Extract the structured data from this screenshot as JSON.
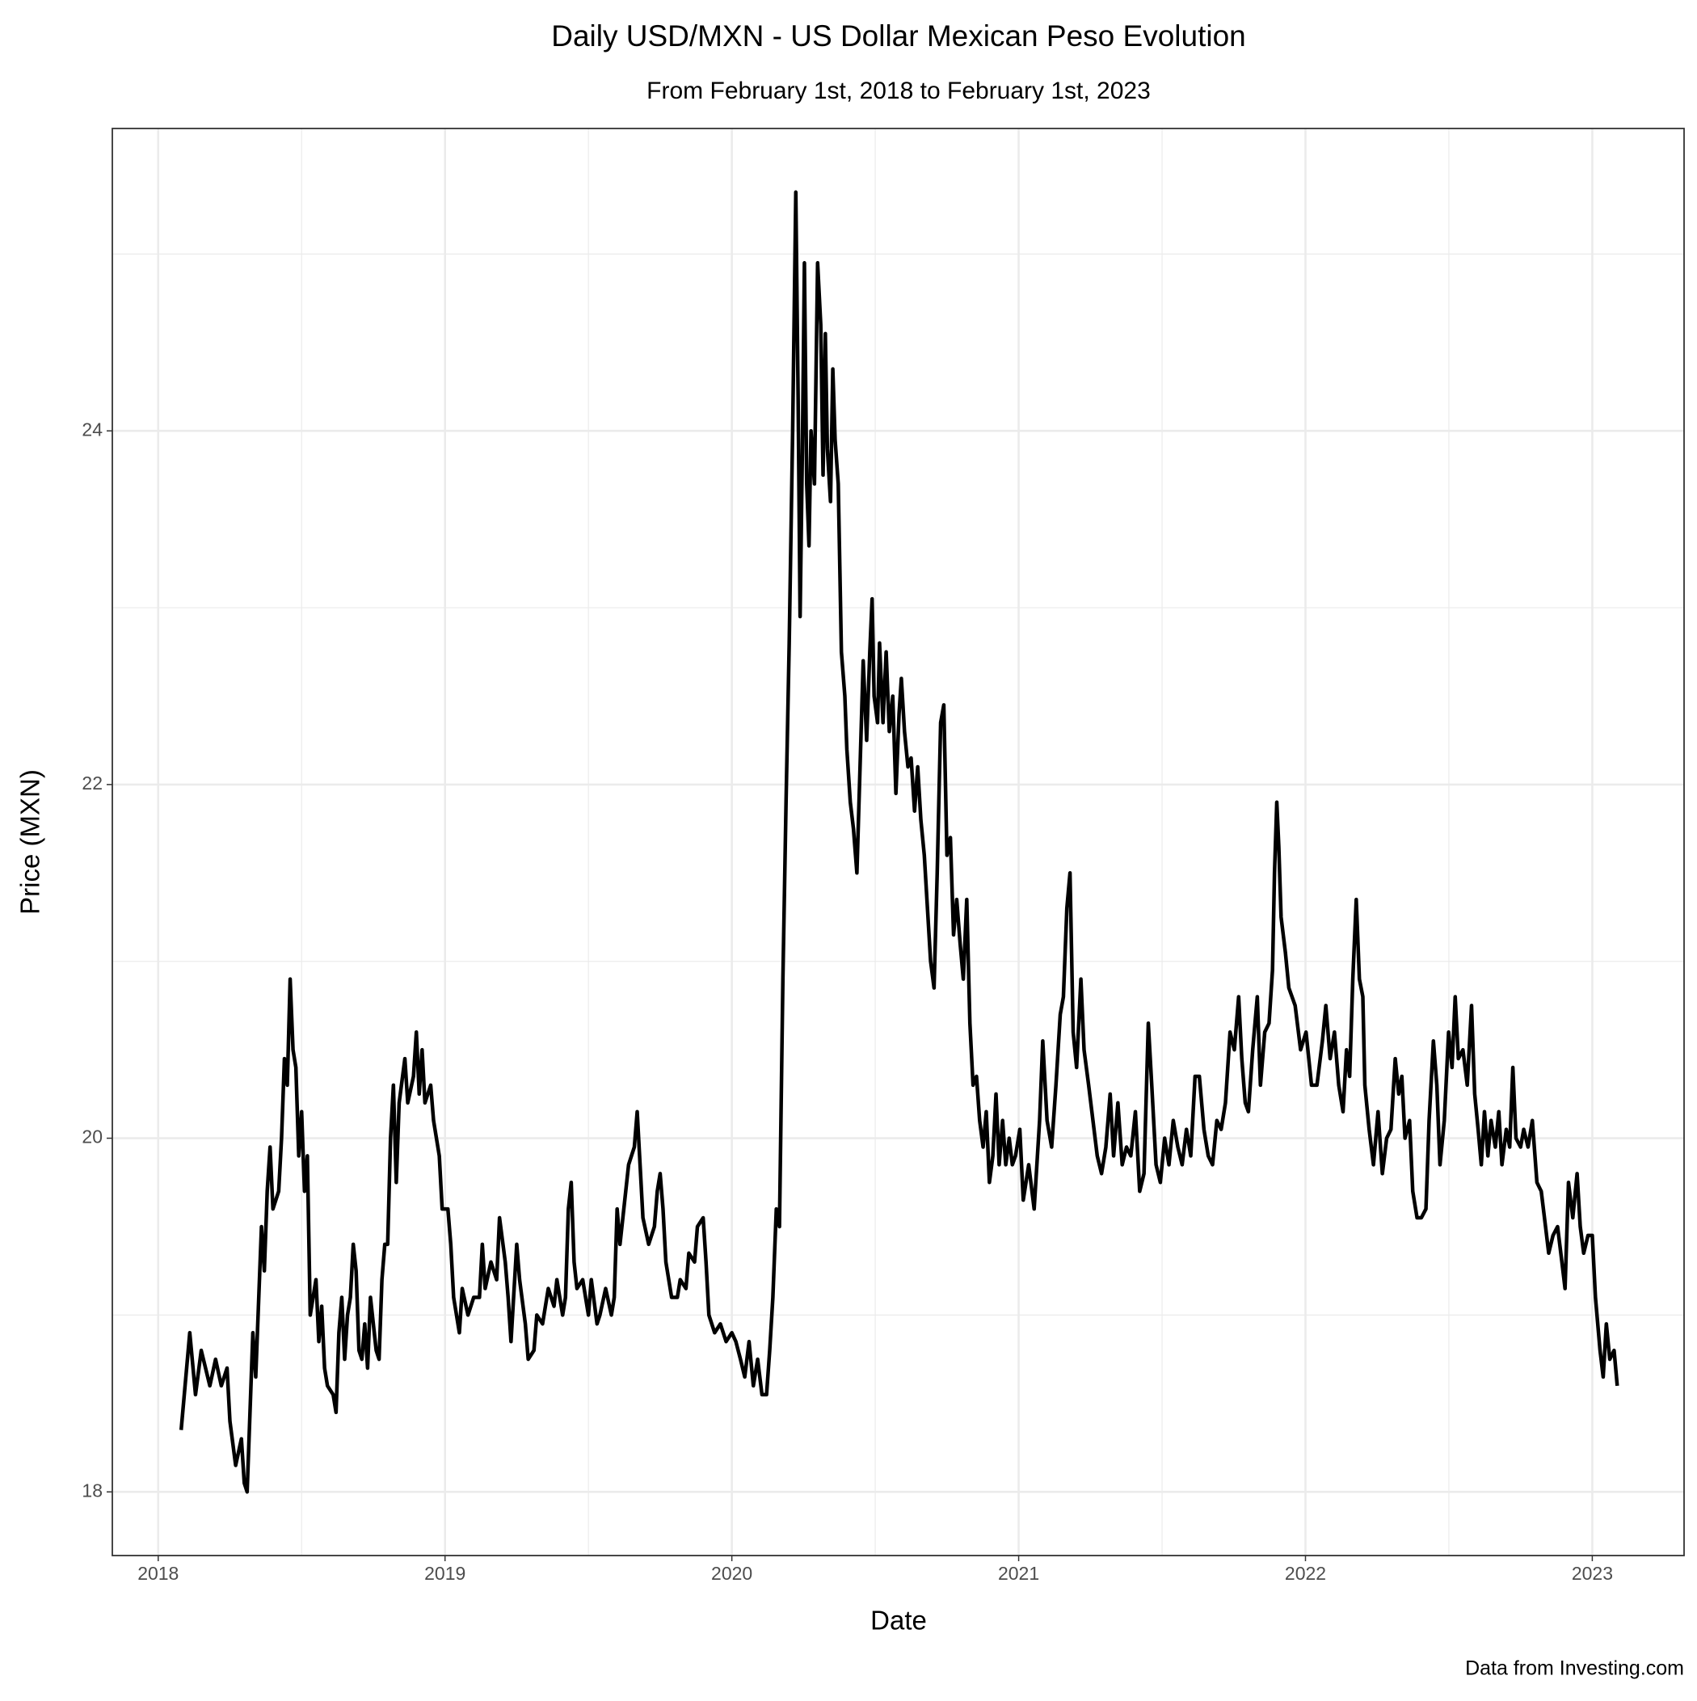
{
  "chart_data": {
    "type": "line",
    "title": "Daily USD/MXN - US Dollar Mexican Peso Evolution",
    "subtitle": "From February 1st, 2018 to February 1st, 2023",
    "x_label": "Date",
    "y_label": "Price (MXN)",
    "caption": "Data from Investing.com",
    "color": "#000000",
    "grid": true,
    "xlim": [
      2017.84,
      2023.32
    ],
    "xticks": [
      2018,
      2019,
      2020,
      2021,
      2022,
      2023
    ],
    "ylim": [
      17.64,
      25.71
    ],
    "yticks": [
      18,
      20,
      22,
      24
    ],
    "x": [
      2018.08,
      2018.11,
      2018.13,
      2018.15,
      2018.18,
      2018.2,
      2018.22,
      2018.24,
      2018.25,
      2018.27,
      2018.29,
      2018.3,
      2018.31,
      2018.33,
      2018.34,
      2018.36,
      2018.37,
      2018.38,
      2018.39,
      2018.4,
      2018.42,
      2018.43,
      2018.44,
      2018.45,
      2018.46,
      2018.47,
      2018.48,
      2018.49,
      2018.5,
      2018.51,
      2018.52,
      2018.53,
      2018.55,
      2018.56,
      2018.57,
      2018.58,
      2018.59,
      2018.61,
      2018.62,
      2018.63,
      2018.64,
      2018.65,
      2018.66,
      2018.67,
      2018.68,
      2018.69,
      2018.7,
      2018.71,
      2018.72,
      2018.73,
      2018.74,
      2018.76,
      2018.77,
      2018.78,
      2018.79,
      2018.8,
      2018.81,
      2018.82,
      2018.83,
      2018.84,
      2018.86,
      2018.87,
      2018.89,
      2018.9,
      2018.91,
      2018.92,
      2018.93,
      2018.95,
      2018.96,
      2018.98,
      2018.99,
      2019.01,
      2019.02,
      2019.03,
      2019.05,
      2019.06,
      2019.08,
      2019.1,
      2019.12,
      2019.13,
      2019.14,
      2019.16,
      2019.18,
      2019.19,
      2019.21,
      2019.22,
      2019.23,
      2019.25,
      2019.26,
      2019.28,
      2019.29,
      2019.31,
      2019.32,
      2019.34,
      2019.36,
      2019.38,
      2019.39,
      2019.41,
      2019.42,
      2019.43,
      2019.44,
      2019.45,
      2019.46,
      2019.48,
      2019.5,
      2019.51,
      2019.53,
      2019.54,
      2019.56,
      2019.58,
      2019.59,
      2019.6,
      2019.61,
      2019.63,
      2019.64,
      2019.66,
      2019.67,
      2019.68,
      2019.69,
      2019.71,
      2019.73,
      2019.74,
      2019.75,
      2019.76,
      2019.77,
      2019.79,
      2019.81,
      2019.82,
      2019.84,
      2019.85,
      2019.87,
      2019.88,
      2019.9,
      2019.91,
      2019.92,
      2019.94,
      2019.96,
      2019.98,
      2020.0,
      2020.014,
      2020.03,
      2020.045,
      2020.06,
      2020.075,
      2020.09,
      2020.105,
      2020.121,
      2020.132,
      2020.143,
      2020.155,
      2020.166,
      2020.178,
      2020.189,
      2020.2,
      2020.212,
      2020.223,
      2020.231,
      2020.238,
      2020.246,
      2020.253,
      2020.261,
      2020.269,
      2020.276,
      2020.288,
      2020.299,
      2020.31,
      2020.318,
      2020.326,
      2020.333,
      2020.344,
      2020.352,
      2020.36,
      2020.371,
      2020.382,
      2020.394,
      2020.401,
      2020.413,
      2020.424,
      2020.436,
      2020.458,
      2020.47,
      2020.481,
      2020.489,
      2020.496,
      2020.508,
      2020.515,
      2020.527,
      2020.538,
      2020.549,
      2020.561,
      2020.572,
      2020.583,
      2020.591,
      2020.602,
      2020.614,
      2020.625,
      2020.637,
      2020.648,
      2020.659,
      2020.671,
      2020.682,
      2020.693,
      2020.705,
      2020.716,
      2020.728,
      2020.739,
      2020.75,
      2020.762,
      2020.773,
      2020.784,
      2020.796,
      2020.807,
      2020.819,
      2020.83,
      2020.841,
      2020.853,
      2020.864,
      2020.876,
      2020.887,
      2020.898,
      2020.91,
      2020.921,
      2020.932,
      2020.944,
      2020.955,
      2020.967,
      2020.978,
      2020.989,
      2021.004,
      2021.016,
      2021.035,
      2021.054,
      2021.073,
      2021.084,
      2021.099,
      2021.115,
      2021.13,
      2021.145,
      2021.156,
      2021.168,
      2021.179,
      2021.19,
      2021.202,
      2021.217,
      2021.228,
      2021.244,
      2021.259,
      2021.274,
      2021.289,
      2021.304,
      2021.319,
      2021.331,
      2021.346,
      2021.361,
      2021.376,
      2021.391,
      2021.407,
      2021.422,
      2021.437,
      2021.452,
      2021.464,
      2021.479,
      2021.494,
      2021.509,
      2021.524,
      2021.539,
      2021.555,
      2021.57,
      2021.585,
      2021.6,
      2021.615,
      2021.63,
      2021.646,
      2021.661,
      2021.676,
      2021.691,
      2021.706,
      2021.721,
      2021.737,
      2021.752,
      2021.767,
      2021.778,
      2021.79,
      2021.801,
      2021.816,
      2021.832,
      2021.843,
      2021.858,
      2021.873,
      2021.885,
      2021.892,
      2021.9,
      2021.907,
      2021.915,
      2021.93,
      2021.942,
      2021.964,
      2021.983,
      2022.002,
      2022.021,
      2022.04,
      2022.059,
      2022.071,
      2022.086,
      2022.101,
      2022.116,
      2022.131,
      2022.143,
      2022.154,
      2022.165,
      2022.177,
      2022.188,
      2022.2,
      2022.207,
      2022.222,
      2022.237,
      2022.253,
      2022.268,
      2022.283,
      2022.298,
      2022.313,
      2022.325,
      2022.336,
      2022.347,
      2022.363,
      2022.374,
      2022.389,
      2022.404,
      2022.42,
      2022.431,
      2022.446,
      2022.458,
      2022.469,
      2022.484,
      2022.499,
      2022.511,
      2022.522,
      2022.533,
      2022.549,
      2022.564,
      2022.579,
      2022.59,
      2022.602,
      2022.613,
      2022.624,
      2022.636,
      2022.647,
      2022.662,
      2022.674,
      2022.685,
      2022.7,
      2022.712,
      2022.723,
      2022.734,
      2022.75,
      2022.761,
      2022.776,
      2022.791,
      2022.807,
      2022.822,
      2022.837,
      2022.848,
      2022.863,
      2022.879,
      2022.894,
      2022.905,
      2022.917,
      2022.932,
      2022.947,
      2022.958,
      2022.97,
      2022.985,
      2023.0,
      2023.011,
      2023.027,
      2023.038,
      2023.049,
      2023.061,
      2023.076,
      2023.087
    ],
    "values": [
      18.35,
      18.9,
      18.55,
      18.8,
      18.6,
      18.75,
      18.6,
      18.7,
      18.4,
      18.15,
      18.3,
      18.05,
      18.0,
      18.9,
      18.65,
      19.5,
      19.25,
      19.7,
      19.95,
      19.6,
      19.7,
      20.0,
      20.45,
      20.3,
      20.9,
      20.5,
      20.4,
      19.9,
      20.15,
      19.7,
      19.9,
      19.0,
      19.2,
      18.85,
      19.05,
      18.7,
      18.6,
      18.55,
      18.45,
      18.9,
      19.1,
      18.75,
      19.0,
      19.1,
      19.4,
      19.25,
      18.8,
      18.75,
      18.95,
      18.7,
      19.1,
      18.8,
      18.75,
      19.2,
      19.4,
      19.4,
      20.0,
      20.3,
      19.75,
      20.2,
      20.45,
      20.2,
      20.35,
      20.6,
      20.25,
      20.5,
      20.2,
      20.3,
      20.1,
      19.9,
      19.6,
      19.6,
      19.4,
      19.1,
      18.9,
      19.15,
      19.0,
      19.1,
      19.1,
      19.4,
      19.15,
      19.3,
      19.2,
      19.55,
      19.3,
      19.1,
      18.85,
      19.4,
      19.2,
      18.95,
      18.75,
      18.8,
      19.0,
      18.95,
      19.15,
      19.05,
      19.2,
      19.0,
      19.1,
      19.6,
      19.75,
      19.3,
      19.15,
      19.2,
      19.0,
      19.2,
      18.95,
      19.0,
      19.15,
      19.0,
      19.1,
      19.6,
      19.4,
      19.7,
      19.85,
      19.95,
      20.15,
      19.85,
      19.55,
      19.4,
      19.5,
      19.7,
      19.8,
      19.6,
      19.3,
      19.1,
      19.1,
      19.2,
      19.15,
      19.35,
      19.3,
      19.5,
      19.55,
      19.3,
      19.0,
      18.9,
      18.95,
      18.85,
      18.9,
      18.85,
      18.75,
      18.65,
      18.85,
      18.6,
      18.75,
      18.55,
      18.55,
      18.8,
      19.1,
      19.6,
      19.5,
      20.9,
      21.9,
      22.8,
      24.0,
      25.35,
      24.2,
      22.95,
      23.9,
      24.95,
      23.7,
      23.35,
      24.0,
      23.7,
      24.95,
      24.6,
      23.75,
      24.55,
      23.9,
      23.6,
      24.35,
      23.95,
      23.7,
      22.75,
      22.5,
      22.2,
      21.9,
      21.75,
      21.5,
      22.7,
      22.25,
      22.75,
      23.05,
      22.5,
      22.35,
      22.8,
      22.35,
      22.75,
      22.3,
      22.5,
      21.95,
      22.4,
      22.6,
      22.3,
      22.1,
      22.15,
      21.85,
      22.1,
      21.8,
      21.6,
      21.3,
      21.0,
      20.85,
      21.5,
      22.35,
      22.45,
      21.6,
      21.7,
      21.15,
      21.35,
      21.1,
      20.9,
      21.35,
      20.65,
      20.3,
      20.35,
      20.1,
      19.95,
      20.15,
      19.75,
      19.9,
      20.25,
      19.85,
      20.1,
      19.85,
      20.0,
      19.85,
      19.9,
      20.05,
      19.65,
      19.85,
      19.6,
      20.1,
      20.55,
      20.1,
      19.95,
      20.3,
      20.7,
      20.8,
      21.3,
      21.5,
      20.6,
      20.4,
      20.9,
      20.5,
      20.3,
      20.1,
      19.9,
      19.8,
      19.95,
      20.25,
      19.9,
      20.2,
      19.85,
      19.95,
      19.9,
      20.15,
      19.7,
      19.8,
      20.65,
      20.3,
      19.85,
      19.75,
      20.0,
      19.85,
      20.1,
      19.95,
      19.85,
      20.05,
      19.9,
      20.35,
      20.35,
      20.05,
      19.9,
      19.85,
      20.1,
      20.05,
      20.2,
      20.6,
      20.5,
      20.8,
      20.45,
      20.2,
      20.15,
      20.5,
      20.8,
      20.3,
      20.6,
      20.65,
      20.95,
      21.5,
      21.9,
      21.65,
      21.25,
      21.05,
      20.85,
      20.75,
      20.5,
      20.6,
      20.3,
      20.3,
      20.55,
      20.75,
      20.45,
      20.6,
      20.3,
      20.15,
      20.5,
      20.35,
      20.9,
      21.35,
      20.9,
      20.8,
      20.3,
      20.05,
      19.85,
      20.15,
      19.8,
      20.0,
      20.05,
      20.45,
      20.25,
      20.35,
      20.0,
      20.1,
      19.7,
      19.55,
      19.55,
      19.6,
      20.1,
      20.55,
      20.3,
      19.85,
      20.1,
      20.6,
      20.4,
      20.8,
      20.45,
      20.5,
      20.3,
      20.75,
      20.25,
      20.05,
      19.85,
      20.15,
      19.9,
      20.1,
      19.95,
      20.15,
      19.85,
      20.05,
      19.95,
      20.4,
      20.0,
      19.95,
      20.05,
      19.95,
      20.1,
      19.75,
      19.7,
      19.5,
      19.35,
      19.45,
      19.5,
      19.3,
      19.15,
      19.75,
      19.55,
      19.8,
      19.5,
      19.35,
      19.45,
      19.45,
      19.1,
      18.8,
      18.65,
      18.95,
      18.75,
      18.8,
      18.6
    ]
  }
}
